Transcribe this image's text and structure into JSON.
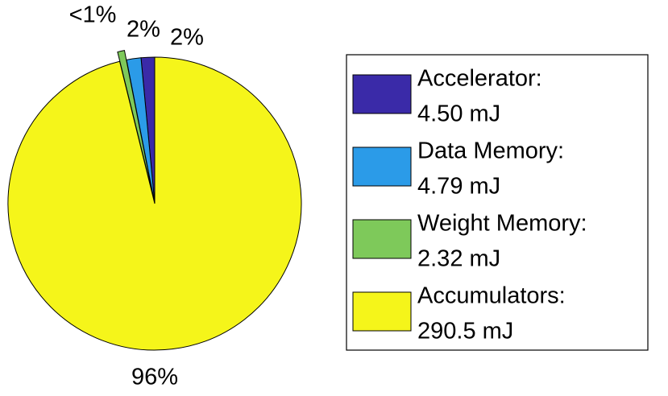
{
  "chart_data": {
    "type": "pie",
    "categories": [
      "Accelerator:",
      "Data Memory:",
      "Weight Memory:",
      "Accumulators:"
    ],
    "values": [
      4.5,
      4.79,
      2.32,
      290.5
    ],
    "value_labels": [
      "4.50 mJ",
      "4.79 mJ",
      "2.32 mJ",
      "290.5 mJ"
    ],
    "percent_labels": [
      "2%",
      "2%",
      "<1%",
      "96%"
    ],
    "colors": [
      "#3a2aa8",
      "#2b9be8",
      "#7ec95a",
      "#f5f51a"
    ],
    "exploded": [
      false,
      false,
      true,
      false
    ],
    "legend": "right"
  }
}
